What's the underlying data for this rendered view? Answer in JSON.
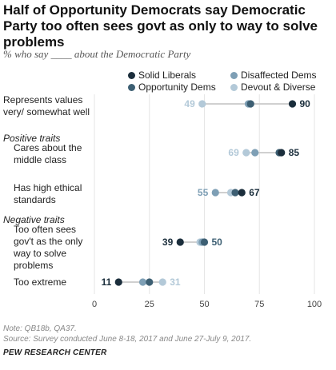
{
  "header": {
    "title": "Half of Opportunity Democrats say Democratic Party too often sees govt as only to way to solve problems",
    "subtitle": "% who say ____ about the Democratic Party"
  },
  "colors": {
    "solid_liberals": "#1b2e3c",
    "opportunity_dems": "#3d5f73",
    "disaffected_dems": "#7e9fb5",
    "devout_diverse": "#b3c9d8"
  },
  "legend": [
    {
      "key": "solid_liberals",
      "label": "Solid Liberals"
    },
    {
      "key": "disaffected_dems",
      "label": "Disaffected Dems"
    },
    {
      "key": "opportunity_dems",
      "label": "Opportunity Dems"
    },
    {
      "key": "devout_diverse",
      "label": "Devout & Diverse"
    }
  ],
  "sections": {
    "positive": "Positive traits",
    "negative": "Negative traits"
  },
  "chart_data": {
    "type": "scatter",
    "xlim": [
      0,
      100
    ],
    "x_ticks": [
      "0",
      "25",
      "50",
      "75",
      "100"
    ],
    "series_order": [
      "solid_liberals",
      "opportunity_dems",
      "disaffected_dems",
      "devout_diverse"
    ],
    "rows": [
      {
        "label": "Represents values very/ somewhat well",
        "values": {
          "solid_liberals": 90,
          "opportunity_dems": 71,
          "disaffected_dems": 70,
          "devout_diverse": 49
        },
        "labels": [
          {
            "text": "49",
            "series": "devout_diverse",
            "side": "left"
          },
          {
            "text": "90",
            "series": "solid_liberals",
            "side": "right"
          }
        ]
      },
      {
        "label": "Cares about the middle class",
        "values": {
          "solid_liberals": 85,
          "opportunity_dems": 84,
          "disaffected_dems": 73,
          "devout_diverse": 69
        },
        "labels": [
          {
            "text": "69",
            "series": "devout_diverse",
            "side": "left"
          },
          {
            "text": "85",
            "series": "solid_liberals",
            "side": "right"
          }
        ]
      },
      {
        "label": "Has high ethical standards",
        "values": {
          "solid_liberals": 67,
          "opportunity_dems": 64,
          "disaffected_dems": 55,
          "devout_diverse": 62
        },
        "labels": [
          {
            "text": "55",
            "series": "disaffected_dems",
            "side": "left"
          },
          {
            "text": "67",
            "series": "solid_liberals",
            "side": "right"
          }
        ]
      },
      {
        "label": "Too often sees gov't as the only way to solve problems",
        "values": {
          "solid_liberals": 39,
          "opportunity_dems": 50,
          "disaffected_dems": 49,
          "devout_diverse": 48
        },
        "labels": [
          {
            "text": "39",
            "series": "solid_liberals",
            "side": "left"
          },
          {
            "text": "50",
            "series": "opportunity_dems",
            "side": "right"
          }
        ]
      },
      {
        "label": "Too extreme",
        "values": {
          "solid_liberals": 11,
          "opportunity_dems": 25,
          "disaffected_dems": 22,
          "devout_diverse": 31
        },
        "labels": [
          {
            "text": "11",
            "series": "solid_liberals",
            "side": "left"
          },
          {
            "text": "31",
            "series": "devout_diverse",
            "side": "right"
          }
        ]
      }
    ]
  },
  "footer": {
    "note": "Note: QB18b, QA37.",
    "source": "Source: Survey conducted June 8-18, 2017 and June 27-July 9, 2017.",
    "org": "PEW RESEARCH CENTER"
  }
}
